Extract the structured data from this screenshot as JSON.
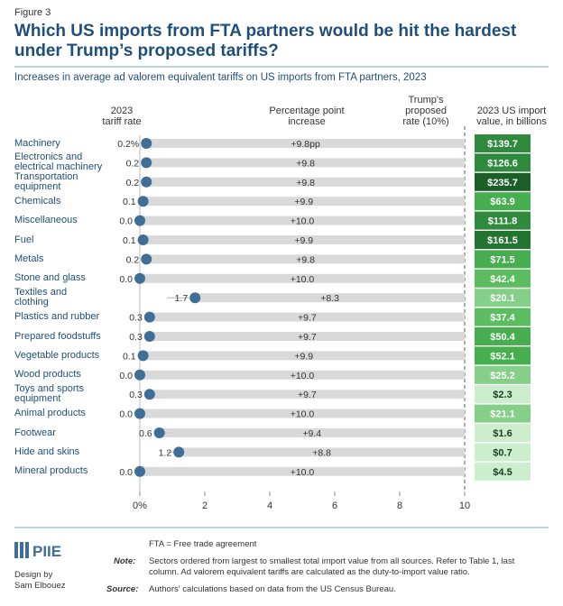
{
  "chart_data": {
    "type": "dot-range",
    "figure_label": "Figure 3",
    "title": "Which US imports from FTA partners would be hit the hardest under Trump’s proposed tariffs?",
    "subtitle": "Increases in average ad valorem equivalent tariffs on US imports from FTA partners, 2023",
    "categories": [
      "Machinery",
      "Electronics and\nelectrical machinery",
      "Transportation\nequipment",
      "Chemicals",
      "Miscellaneous",
      "Fuel",
      "Metals",
      "Stone and glass",
      "Textiles and\nclothing",
      "Plastics and rubber",
      "Prepared foodstuffs",
      "Vegetable products",
      "Wood products",
      "Toys and sports\nequipment",
      "Animal products",
      "Footwear",
      "Hide and skins",
      "Mineral products"
    ],
    "series": [
      {
        "name": "2023\ntariff rate",
        "color": "#3f6e97",
        "values": [
          0.2,
          0.2,
          0.2,
          0.1,
          0.0,
          0.1,
          0.2,
          0.0,
          1.7,
          0.3,
          0.3,
          0.1,
          0.0,
          0.3,
          0.0,
          0.6,
          1.2,
          0.0
        ],
        "value_labels": [
          "0.2%",
          "0.2",
          "0.2",
          "0.1",
          "0.0",
          "0.1",
          "0.2",
          "0.0",
          "1.7",
          "0.3",
          "0.3",
          "0.1",
          "0.0",
          "0.3",
          "0.0",
          "0.6",
          "1.2",
          "0.0"
        ]
      },
      {
        "name": "Percentage point\nincrease",
        "color": "#d9d9d9",
        "values": [
          9.8,
          9.8,
          9.8,
          9.9,
          10.0,
          9.9,
          9.8,
          10.0,
          8.3,
          9.7,
          9.7,
          9.9,
          10.0,
          9.7,
          10.0,
          9.4,
          8.8,
          10.0
        ],
        "value_labels": [
          "+9.8pp",
          "+9.8",
          "+9.8",
          "+9.9",
          "+10.0",
          "+9.9",
          "+9.8",
          "+10.0",
          "+8.3",
          "+9.7",
          "+9.7",
          "+9.9",
          "+10.0",
          "+9.7",
          "+10.0",
          "+9.4",
          "+8.8",
          "+10.0"
        ]
      },
      {
        "name": "2023 US import\nvalue, in billions",
        "values": [
          139.7,
          126.6,
          235.7,
          63.9,
          111.8,
          161.5,
          71.5,
          42.4,
          20.1,
          37.4,
          50.4,
          52.1,
          25.2,
          2.3,
          21.1,
          1.6,
          0.7,
          4.5
        ],
        "value_labels": [
          "$139.7",
          "$126.6",
          "$235.7",
          "$63.9",
          "$111.8",
          "$161.5",
          "$71.5",
          "$42.4",
          "$20.1",
          "$37.4",
          "$50.4",
          "$52.1",
          "$25.2",
          "$2.3",
          "$21.1",
          "$1.6",
          "$0.7",
          "$4.5"
        ],
        "colors": [
          "#2f8a3e",
          "#2f8a3e",
          "#1b5e28",
          "#46ae4e",
          "#2f8a3e",
          "#237331",
          "#46ae4e",
          "#5bbd60",
          "#86cf88",
          "#5bbd60",
          "#46ae4e",
          "#46ae4e",
          "#86cf88",
          "#cdeecd",
          "#86cf88",
          "#cdeecd",
          "#cdeecd",
          "#cdeecd"
        ]
      }
    ],
    "proposed_rate": 10,
    "proposed_rate_label": "Trump's\nproposed\nrate (10%)",
    "xlim": [
      0,
      10
    ],
    "xticks": [
      {
        "value": 0,
        "label": "0%"
      },
      2,
      4,
      6,
      8,
      10
    ],
    "footer": {
      "logo": "PIIE",
      "design": "Design by\nSam Elbouez",
      "abbreviation": "FTA = Free trade agreement",
      "note_label": "Note:",
      "note": "Sectors ordered from largest to smallest total import value from all sources. Refer to Table 1, last column. Ad valorem equivalent tariffs are calculated as the duty-to-import value ratio.",
      "source_label": "Source:",
      "source": "Authors' calculations based on data from the US Census Bureau."
    }
  }
}
